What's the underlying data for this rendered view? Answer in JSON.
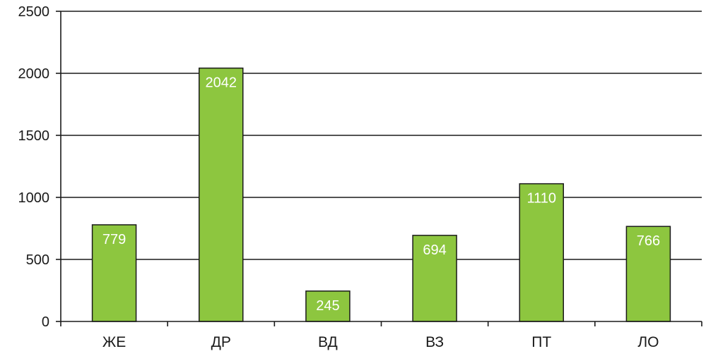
{
  "chart_data": {
    "type": "bar",
    "categories": [
      "ЖЕ",
      "ДР",
      "ВД",
      "ВЗ",
      "ПТ",
      "ЛО"
    ],
    "values": [
      779,
      2042,
      245,
      694,
      1110,
      766
    ],
    "value_labels": [
      "779",
      "2042",
      "245",
      "694",
      "1110",
      "766"
    ],
    "title": "",
    "xlabel": "",
    "ylabel": "",
    "ylim": [
      0,
      2500
    ],
    "yticks": [
      0,
      500,
      1000,
      1500,
      2000,
      2500
    ],
    "ytick_labels": [
      "0",
      "500",
      "1000",
      "1500",
      "2000",
      "2500"
    ],
    "grid": true,
    "legend": "none",
    "colors": {
      "bar_fill": "#8dc63f",
      "bar_stroke": "#1a1a1a",
      "grid": "#1a1a1a",
      "axis": "#1a1a1a",
      "tick_text": "#1a1a1a",
      "value_text": "#ffffff"
    }
  }
}
